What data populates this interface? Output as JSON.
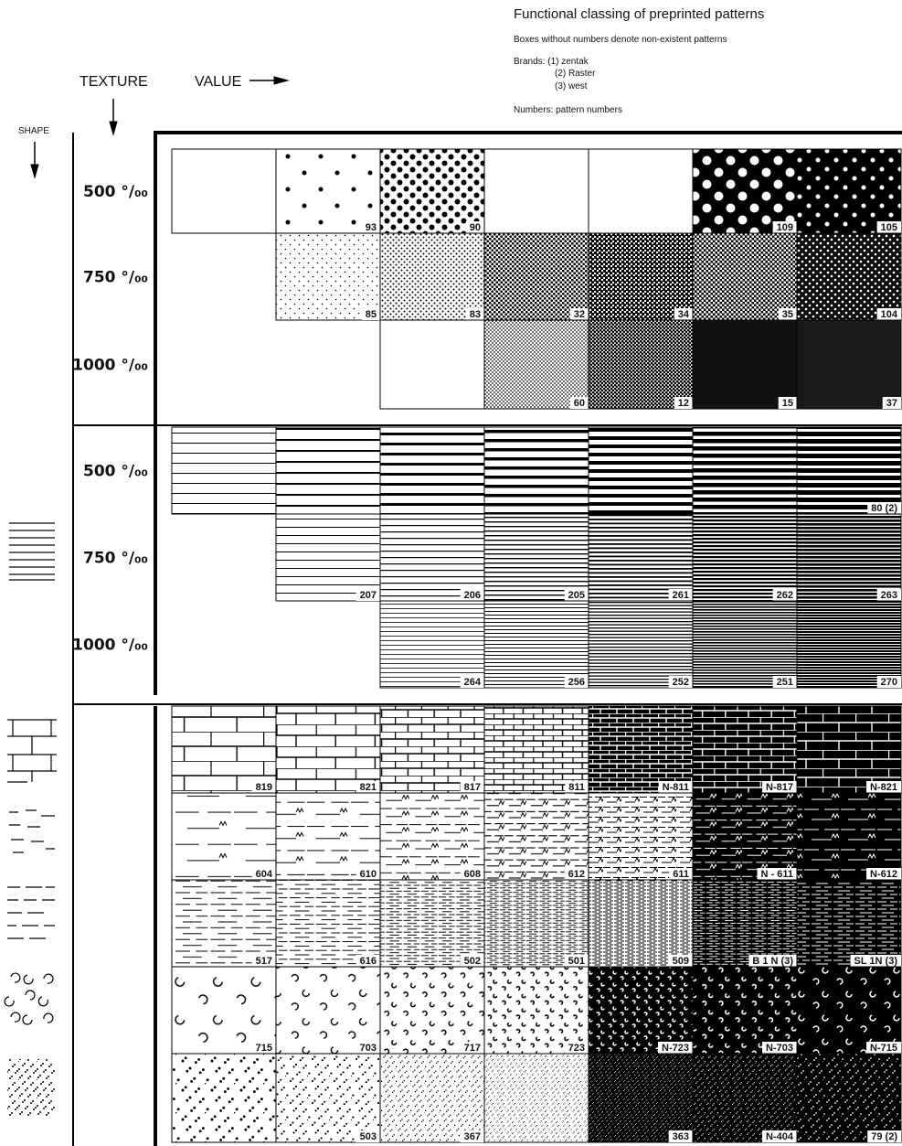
{
  "header": {
    "title": "Functional classing of preprinted patterns",
    "note": "Boxes without numbers denote non-existent patterns",
    "brands": [
      "Brands: (1) zentak",
      "(2) Raster",
      "(3) west"
    ],
    "numbers_note": "Numbers: pattern numbers"
  },
  "axes": {
    "texture": "TEXTURE",
    "value": "VALUE",
    "shape": "SHAPE"
  },
  "sections": [
    {
      "rows": [
        {
          "label": "500 °/₀₀",
          "cells": [
            null,
            93,
            90,
            null,
            null,
            109,
            105
          ]
        },
        {
          "label": "750 °/₀₀",
          "cells": [
            85,
            83,
            32,
            34,
            35,
            104
          ]
        },
        {
          "label": "1000 °/₀₀",
          "cells": [
            null,
            60,
            12,
            15,
            37
          ]
        }
      ]
    },
    {
      "rows": [
        {
          "label": "500 °/₀₀",
          "cells": [
            null,
            null,
            null,
            null,
            null,
            null,
            "80 (2)"
          ]
        },
        {
          "label": "750 °/₀₀",
          "cells": [
            207,
            206,
            205,
            261,
            262,
            263
          ]
        },
        {
          "label": "1000 °/₀₀",
          "cells": [
            264,
            256,
            252,
            251,
            270
          ]
        }
      ]
    },
    {
      "rows": [
        {
          "cells": [
            819,
            821,
            817,
            811,
            "N-811",
            "N-817",
            "N-821"
          ]
        },
        {
          "cells": [
            604,
            610,
            608,
            612,
            611,
            "N - 611",
            "N-612"
          ]
        },
        {
          "cells": [
            517,
            616,
            502,
            501,
            509,
            "B 1 N (3)",
            "SL 1N (3)"
          ]
        },
        {
          "cells": [
            715,
            703,
            717,
            723,
            "N-723",
            "N-703",
            "N-715"
          ]
        },
        {
          "cells": [
            null,
            503,
            367,
            null,
            363,
            "N-404",
            "79 (2)"
          ]
        }
      ]
    }
  ]
}
